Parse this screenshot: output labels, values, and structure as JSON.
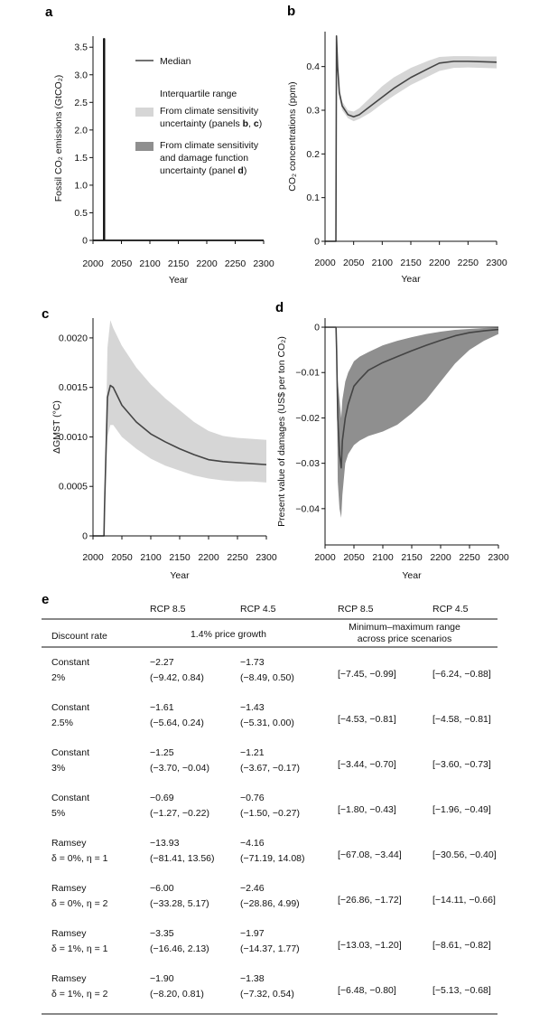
{
  "chart_data": [
    {
      "panel": "a",
      "type": "line",
      "xlabel": "Year",
      "ylabel": "Fossil CO₂ emissions (GtCO₂)",
      "xlim": [
        2000,
        2300
      ],
      "ylim": [
        0,
        3.7
      ],
      "xticks": [
        2000,
        2050,
        2100,
        2150,
        2200,
        2250,
        2300
      ],
      "yticks": [
        0,
        0.5,
        1.0,
        1.5,
        2.0,
        2.5,
        3.0,
        3.5
      ],
      "yticklabels": [
        "0",
        "0.5",
        "1.0",
        "1.5",
        "2.0",
        "2.5",
        "3.0",
        "3.5"
      ],
      "series": [
        {
          "name": "Median",
          "x": [
            2000,
            2019,
            2019,
            2020,
            2020,
            2300
          ],
          "y": [
            0,
            0,
            3.65,
            3.65,
            0,
            0
          ]
        }
      ],
      "legend": {
        "placement": "right",
        "median": "Median",
        "iqr_title": "Interquartile range",
        "light": [
          "From climate sensitivity",
          "uncertainty (panels ",
          "b",
          ", ",
          "c",
          ")"
        ],
        "dark": [
          "From climate sensitivity",
          "and damage function",
          "uncertainty (panel ",
          "d",
          ")"
        ]
      },
      "colors": {
        "line": "#444444",
        "light_band": "#d6d6d6",
        "dark_band": "#8f8f8f"
      }
    },
    {
      "panel": "b",
      "type": "line",
      "xlabel": "Year",
      "ylabel": "CO₂ concentrations (ppm)",
      "xlim": [
        2000,
        2300
      ],
      "ylim": [
        0,
        0.48
      ],
      "xticks": [
        2000,
        2050,
        2100,
        2150,
        2200,
        2250,
        2300
      ],
      "yticks": [
        0,
        0.1,
        0.2,
        0.3,
        0.4
      ],
      "yticklabels": [
        "0",
        "0.1",
        "0.2",
        "0.3",
        "0.4"
      ],
      "series": [
        {
          "name": "Median",
          "x": [
            2000,
            2019,
            2020,
            2022,
            2025,
            2030,
            2040,
            2050,
            2060,
            2080,
            2100,
            2120,
            2150,
            2180,
            2200,
            2225,
            2250,
            2275,
            2300
          ],
          "y": [
            0,
            0,
            0.47,
            0.4,
            0.34,
            0.31,
            0.29,
            0.285,
            0.29,
            0.31,
            0.33,
            0.35,
            0.375,
            0.395,
            0.408,
            0.412,
            0.412,
            0.411,
            0.41
          ],
          "iqr_low": [
            0,
            0,
            0.47,
            0.39,
            0.33,
            0.3,
            0.282,
            0.275,
            0.28,
            0.295,
            0.315,
            0.333,
            0.358,
            0.377,
            0.39,
            0.397,
            0.398,
            0.397,
            0.396
          ],
          "iqr_high": [
            0,
            0,
            0.47,
            0.41,
            0.35,
            0.32,
            0.3,
            0.297,
            0.305,
            0.33,
            0.355,
            0.375,
            0.397,
            0.413,
            0.422,
            0.424,
            0.424,
            0.423,
            0.423
          ]
        }
      ]
    },
    {
      "panel": "c",
      "type": "line",
      "xlabel": "Year",
      "ylabel": "ΔGMST (°C)",
      "xlim": [
        2000,
        2300
      ],
      "ylim": [
        0,
        0.0022
      ],
      "xticks": [
        2000,
        2050,
        2100,
        2150,
        2200,
        2250,
        2300
      ],
      "yticks": [
        0,
        0.0005,
        0.001,
        0.0015,
        0.002
      ],
      "yticklabels": [
        "0",
        "0.0005",
        "0.0010",
        "0.0015",
        "0.0020"
      ],
      "series": [
        {
          "name": "Median",
          "x": [
            2000,
            2019,
            2020,
            2025,
            2030,
            2035,
            2050,
            2075,
            2100,
            2125,
            2150,
            2175,
            2200,
            2225,
            2250,
            2275,
            2300
          ],
          "y": [
            0,
            0,
            0.0003,
            0.0014,
            0.00152,
            0.0015,
            0.00132,
            0.00115,
            0.00103,
            0.00095,
            0.00088,
            0.00082,
            0.00077,
            0.00075,
            0.00074,
            0.00073,
            0.00072
          ],
          "iqr_low": [
            0,
            0,
            0.0003,
            0.001,
            0.00112,
            0.00112,
            0.001,
            0.00088,
            0.00078,
            0.00071,
            0.00066,
            0.00061,
            0.00058,
            0.00056,
            0.00055,
            0.00055,
            0.00054
          ],
          "iqr_high": [
            0,
            0,
            0.0003,
            0.0019,
            0.00218,
            0.0021,
            0.00192,
            0.0017,
            0.00153,
            0.00139,
            0.00127,
            0.00115,
            0.00106,
            0.00101,
            0.00099,
            0.00098,
            0.00097
          ]
        }
      ]
    },
    {
      "panel": "d",
      "type": "line",
      "xlabel": "Year",
      "ylabel": "Present value of damages (US$ per ton CO₂)",
      "xlim": [
        2000,
        2300
      ],
      "ylim": [
        -0.048,
        0.002
      ],
      "xticks": [
        2000,
        2050,
        2100,
        2150,
        2200,
        2250,
        2300
      ],
      "yticks": [
        0,
        -0.01,
        -0.02,
        -0.03,
        -0.04
      ],
      "yticklabels": [
        "0",
        "−0.01",
        "−0.02",
        "−0.03",
        "−0.04"
      ],
      "series": [
        {
          "name": "Median",
          "x": [
            2000,
            2019,
            2020,
            2022,
            2025,
            2028,
            2030,
            2035,
            2040,
            2050,
            2060,
            2075,
            2100,
            2125,
            2150,
            2175,
            2200,
            2225,
            2250,
            2275,
            2300
          ],
          "y": [
            0,
            0,
            -0.005,
            -0.02,
            -0.028,
            -0.031,
            -0.025,
            -0.02,
            -0.017,
            -0.013,
            -0.0115,
            -0.0095,
            -0.0078,
            -0.0065,
            -0.0052,
            -0.004,
            -0.0029,
            -0.0019,
            -0.0012,
            -0.0008,
            -0.0005
          ],
          "iqr_low": [
            0,
            0,
            -0.005,
            -0.034,
            -0.04,
            -0.042,
            -0.037,
            -0.03,
            -0.028,
            -0.026,
            -0.025,
            -0.024,
            -0.023,
            -0.0215,
            -0.019,
            -0.016,
            -0.012,
            -0.008,
            -0.005,
            -0.003,
            -0.0015
          ],
          "iqr_high": [
            0,
            0,
            -0.005,
            -0.012,
            -0.016,
            -0.02,
            -0.016,
            -0.012,
            -0.01,
            -0.0075,
            -0.0065,
            -0.0055,
            -0.004,
            -0.003,
            -0.0022,
            -0.0015,
            -0.001,
            -0.0006,
            -0.0004,
            -0.0002,
            -0.0001
          ]
        }
      ]
    },
    {
      "panel": "e",
      "type": "table",
      "header": {
        "top": [
          "RCP 8.5",
          "RCP 4.5",
          "RCP 8.5",
          "RCP 4.5"
        ],
        "col0": "Discount rate",
        "group1": "1.4% price growth",
        "group2": [
          "Minimum–maximum range",
          "across price scenarios"
        ]
      },
      "rows": [
        {
          "rate": [
            "Constant",
            "2%"
          ],
          "r85": "−2.27",
          "r85_ci": "(−9.42, 0.84)",
          "r45": "−1.73",
          "r45_ci": "(−8.49, 0.50)",
          "min_max_85": "[−7.45, −0.99]",
          "min_max_45": "[−6.24, −0.88]"
        },
        {
          "rate": [
            "Constant",
            "2.5%"
          ],
          "r85": "−1.61",
          "r85_ci": "(−5.64, 0.24)",
          "r45": "−1.43",
          "r45_ci": "(−5.31, 0.00)",
          "min_max_85": "[−4.53, −0.81]",
          "min_max_45": "[−4.58, −0.81]"
        },
        {
          "rate": [
            "Constant",
            "3%"
          ],
          "r85": "−1.25",
          "r85_ci": "(−3.70, −0.04)",
          "r45": "−1.21",
          "r45_ci": "(−3.67, −0.17)",
          "min_max_85": "[−3.44, −0.70]",
          "min_max_45": "[−3.60, −0.73]"
        },
        {
          "rate": [
            "Constant",
            "5%"
          ],
          "r85": "−0.69",
          "r85_ci": "(−1.27, −0.22)",
          "r45": "−0.76",
          "r45_ci": "(−1.50, −0.27)",
          "min_max_85": "[−1.80, −0.43]",
          "min_max_45": "[−1.96, −0.49]"
        },
        {
          "rate": [
            "Ramsey",
            "δ = 0%, η = 1"
          ],
          "r85": "−13.93",
          "r85_ci": "(−81.41, 13.56)",
          "r45": "−4.16",
          "r45_ci": "(−71.19, 14.08)",
          "min_max_85": "[−67.08, −3.44]",
          "min_max_45": "[−30.56, −0.40]"
        },
        {
          "rate": [
            "Ramsey",
            "δ = 0%, η = 2"
          ],
          "r85": "−6.00",
          "r85_ci": "(−33.28, 5.17)",
          "r45": "−2.46",
          "r45_ci": "(−28.86, 4.99)",
          "min_max_85": "[−26.86, −1.72]",
          "min_max_45": "[−14.11, −0.66]"
        },
        {
          "rate": [
            "Ramsey",
            "δ = 1%, η = 1"
          ],
          "r85": "−3.35",
          "r85_ci": "(−16.46, 2.13)",
          "r45": "−1.97",
          "r45_ci": "(−14.37, 1.77)",
          "min_max_85": "[−13.03, −1.20]",
          "min_max_45": "[−8.61, −0.82]"
        },
        {
          "rate": [
            "Ramsey",
            "δ = 1%, η = 2"
          ],
          "r85": "−1.90",
          "r85_ci": "(−8.20, 0.81)",
          "r45": "−1.38",
          "r45_ci": "(−7.32, 0.54)",
          "min_max_85": "[−6.48, −0.80]",
          "min_max_45": "[−5.13, −0.68]"
        }
      ]
    }
  ]
}
